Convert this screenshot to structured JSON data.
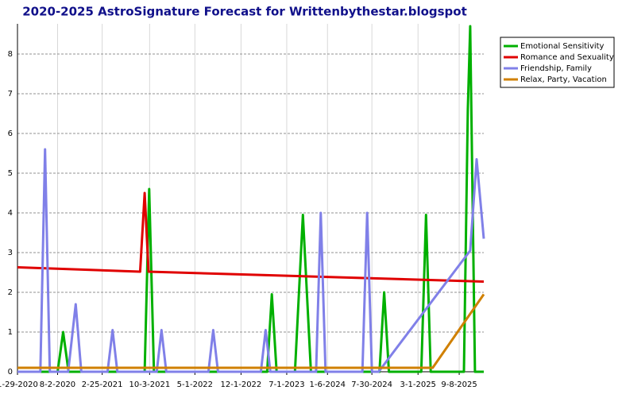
{
  "chart_data": {
    "type": "line",
    "title": "2020-2025 AstroSignature Forecast for Writtenbythestar.blogspot",
    "xlim": [
      "1-29-2020",
      "12-31-2025"
    ],
    "xticks": [
      "1-29-2020",
      "8-2-2020",
      "2-25-2021",
      "10-3-2021",
      "5-1-2022",
      "12-1-2022",
      "7-1-2023",
      "1-6-2024",
      "7-30-2024",
      "3-1-2025",
      "9-8-2025"
    ],
    "ylim": [
      0,
      8.76
    ],
    "yticks": [
      0,
      1,
      2,
      3,
      4,
      5,
      6,
      7,
      8
    ],
    "grid": true,
    "legend": "upper right",
    "series": [
      {
        "name": "Emotional Sensitivity",
        "color": "#00b000",
        "x": [
          "1-29-2020",
          "8-2-2020",
          "8-28-2020",
          "9-22-2020",
          "9-10-2021",
          "10-1-2021",
          "10-23-2021",
          "4-1-2023",
          "4-23-2023",
          "5-15-2023",
          "8-8-2023",
          "9-14-2023",
          "10-21-2023",
          "9-3-2024",
          "9-25-2024",
          "10-17-2024",
          "3-16-2025",
          "4-7-2025",
          "4-29-2025",
          "9-30-2025",
          "10-18-2025",
          "10-29-2025",
          "11-20-2025",
          "12-31-2025"
        ],
        "values": [
          0,
          0,
          1.0,
          0,
          0,
          4.6,
          0,
          0,
          1.95,
          0,
          0,
          3.95,
          0,
          0,
          2.0,
          0,
          0,
          3.95,
          0,
          0,
          6.6,
          8.7,
          0,
          0
        ]
      },
      {
        "name": "Romance and Sexuality",
        "color": "#e00000",
        "x": [
          "1-29-2020",
          "8-20-2021",
          "9-10-2021",
          "9-28-2021",
          "12-31-2025"
        ],
        "values": [
          2.63,
          2.52,
          4.5,
          2.52,
          2.27
        ]
      },
      {
        "name": "Friendship, Family",
        "color": "#8080e8",
        "x": [
          "1-29-2020",
          "5-14-2020",
          "6-5-2020",
          "6-27-2020",
          "9-20-2020",
          "10-25-2020",
          "11-20-2020",
          "3-22-2021",
          "4-14-2021",
          "5-6-2021",
          "11-5-2021",
          "11-27-2021",
          "12-19-2021",
          "7-3-2022",
          "7-25-2022",
          "8-16-2022",
          "3-3-2023",
          "3-25-2023",
          "4-16-2023",
          "11-14-2023",
          "12-6-2023",
          "12-28-2023",
          "6-16-2024",
          "7-8-2024",
          "7-30-2024",
          "8-30-2024",
          "10-29-2025",
          "11-28-2025",
          "12-31-2025"
        ],
        "values": [
          0,
          0,
          5.6,
          0,
          0,
          1.7,
          0,
          0,
          1.05,
          0,
          0,
          1.05,
          0,
          0,
          1.05,
          0,
          0,
          1.05,
          0,
          0,
          4.0,
          0,
          0,
          4.0,
          0,
          0,
          3.05,
          5.35,
          3.35
        ]
      },
      {
        "name": "Relax, Party, Vacation",
        "color": "#d08000",
        "x": [
          "1-29-2020",
          "5-8-2025",
          "12-31-2025"
        ],
        "values": [
          0.1,
          0.1,
          1.95
        ]
      }
    ]
  }
}
